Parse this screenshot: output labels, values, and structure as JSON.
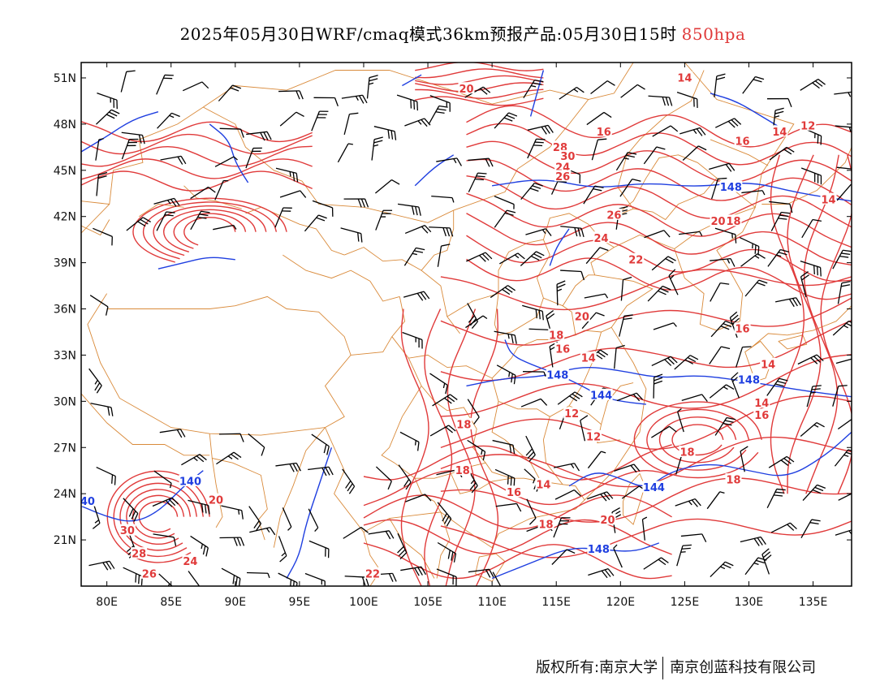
{
  "title": {
    "main": "2025年05月30日WRF/cmaq模式36km预报产品:05月30日15时",
    "level": "850hpa",
    "level_color": "#e03a3a"
  },
  "map": {
    "lon_range": [
      78,
      138
    ],
    "lat_range": [
      18,
      52
    ],
    "lon_ticks": [
      "80E",
      "85E",
      "90E",
      "95E",
      "100E",
      "105E",
      "110E",
      "115E",
      "120E",
      "125E",
      "130E",
      "135E"
    ],
    "lat_ticks": [
      "51N",
      "48N",
      "45N",
      "42N",
      "39N",
      "36N",
      "33N",
      "30N",
      "27N",
      "24N",
      "21N"
    ],
    "colors": {
      "temperature": "#e03a3a",
      "geopotential": "#1f3fe0",
      "boundary": "#d98a3a",
      "wind": "#000000"
    },
    "temperature_labels": [
      {
        "text": "20",
        "lon": 108,
        "lat": 50.3
      },
      {
        "text": "14",
        "lon": 125,
        "lat": 51
      },
      {
        "text": "16",
        "lon": 118.7,
        "lat": 47.5
      },
      {
        "text": "16",
        "lon": 129.5,
        "lat": 46.9
      },
      {
        "text": "14",
        "lon": 132.4,
        "lat": 47.5
      },
      {
        "text": "12",
        "lon": 134.6,
        "lat": 47.9
      },
      {
        "text": "28",
        "lon": 115.3,
        "lat": 46.5
      },
      {
        "text": "30",
        "lon": 115.9,
        "lat": 45.9
      },
      {
        "text": "24",
        "lon": 115.5,
        "lat": 45.2
      },
      {
        "text": "26",
        "lon": 115.5,
        "lat": 44.6
      },
      {
        "text": "26",
        "lon": 119.5,
        "lat": 42.1
      },
      {
        "text": "20",
        "lon": 127.6,
        "lat": 41.7
      },
      {
        "text": "18",
        "lon": 128.8,
        "lat": 41.7
      },
      {
        "text": "14",
        "lon": 136.2,
        "lat": 43.1
      },
      {
        "text": "24",
        "lon": 118.5,
        "lat": 40.6
      },
      {
        "text": "22",
        "lon": 121.2,
        "lat": 39.2
      },
      {
        "text": "20",
        "lon": 117,
        "lat": 35.5
      },
      {
        "text": "16",
        "lon": 129.5,
        "lat": 34.7
      },
      {
        "text": "18",
        "lon": 115,
        "lat": 34.3
      },
      {
        "text": "16",
        "lon": 115.5,
        "lat": 33.4
      },
      {
        "text": "14",
        "lon": 117.5,
        "lat": 32.8
      },
      {
        "text": "14",
        "lon": 131.5,
        "lat": 32.4
      },
      {
        "text": "14",
        "lon": 131,
        "lat": 29.9
      },
      {
        "text": "16",
        "lon": 131,
        "lat": 29.1
      },
      {
        "text": "12",
        "lon": 116.2,
        "lat": 29.2
      },
      {
        "text": "12",
        "lon": 117.9,
        "lat": 27.7
      },
      {
        "text": "18",
        "lon": 107.8,
        "lat": 28.5
      },
      {
        "text": "18",
        "lon": 107.7,
        "lat": 25.5
      },
      {
        "text": "16",
        "lon": 111.7,
        "lat": 24.1
      },
      {
        "text": "14",
        "lon": 114,
        "lat": 24.6
      },
      {
        "text": "18",
        "lon": 125.2,
        "lat": 26.7
      },
      {
        "text": "18",
        "lon": 128.8,
        "lat": 24.9
      },
      {
        "text": "18",
        "lon": 114.2,
        "lat": 22
      },
      {
        "text": "20",
        "lon": 119,
        "lat": 22.3
      },
      {
        "text": "20",
        "lon": 88.5,
        "lat": 23.6
      },
      {
        "text": "30",
        "lon": 81.6,
        "lat": 21.6
      },
      {
        "text": "28",
        "lon": 82.5,
        "lat": 20.1
      },
      {
        "text": "26",
        "lon": 83.3,
        "lat": 18.8
      },
      {
        "text": "24",
        "lon": 86.5,
        "lat": 19.6
      },
      {
        "text": "22",
        "lon": 100.7,
        "lat": 18.8
      }
    ],
    "height_labels": [
      {
        "text": "148",
        "lon": 128.6,
        "lat": 43.9
      },
      {
        "text": "148",
        "lon": 115.1,
        "lat": 31.7
      },
      {
        "text": "144",
        "lon": 118.5,
        "lat": 30.4
      },
      {
        "text": "148",
        "lon": 130,
        "lat": 31.4
      },
      {
        "text": "144",
        "lon": 122.6,
        "lat": 24.4
      },
      {
        "text": "148",
        "lon": 118.3,
        "lat": 20.4
      },
      {
        "text": "140",
        "lon": 86.5,
        "lat": 24.8
      },
      {
        "text": "40",
        "lon": 78.5,
        "lat": 23.5
      }
    ]
  },
  "footer": {
    "left": "版权所有:南京大学",
    "right": "南京创蓝科技有限公司"
  }
}
